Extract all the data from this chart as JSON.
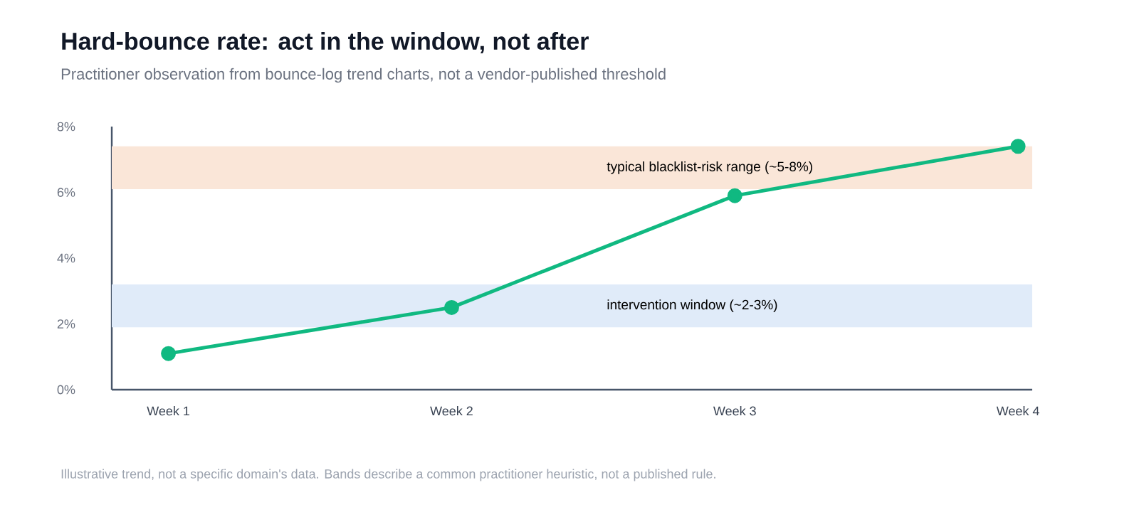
{
  "chart_data": {
    "type": "line",
    "title": "Hard-bounce rate: act in the window, not after",
    "subtitle": "Practitioner observation from bounce-log trend charts, not a vendor-published threshold",
    "categories": [
      "Week 1",
      "Week 2",
      "Week 3",
      "Week 4"
    ],
    "series": [
      {
        "color": "#10b981",
        "values": [
          1.1,
          2.5,
          5.9,
          7.4
        ]
      }
    ],
    "marker": "circle",
    "ylim": [
      0,
      8
    ],
    "yticks": [
      {
        "value": 0,
        "label": "0%"
      },
      {
        "value": 2,
        "label": "2%"
      },
      {
        "value": 4,
        "label": "4%"
      },
      {
        "value": 6,
        "label": "6%"
      },
      {
        "value": 8,
        "label": "8%"
      }
    ],
    "bands": [
      {
        "axis": "y",
        "from": 6.1,
        "to": 7.4,
        "label": "typical blacklist-risk range (~5-8%)",
        "color": "#fae6d8"
      },
      {
        "axis": "y",
        "from": 1.9,
        "to": 3.2,
        "label": "intervention window (~2-3%)",
        "color": "#e0ebf9"
      }
    ],
    "annotations": [
      "Illustrative trend, not a specific domain's data. Bands describe a common practitioner heuristic, not a published rule."
    ]
  }
}
